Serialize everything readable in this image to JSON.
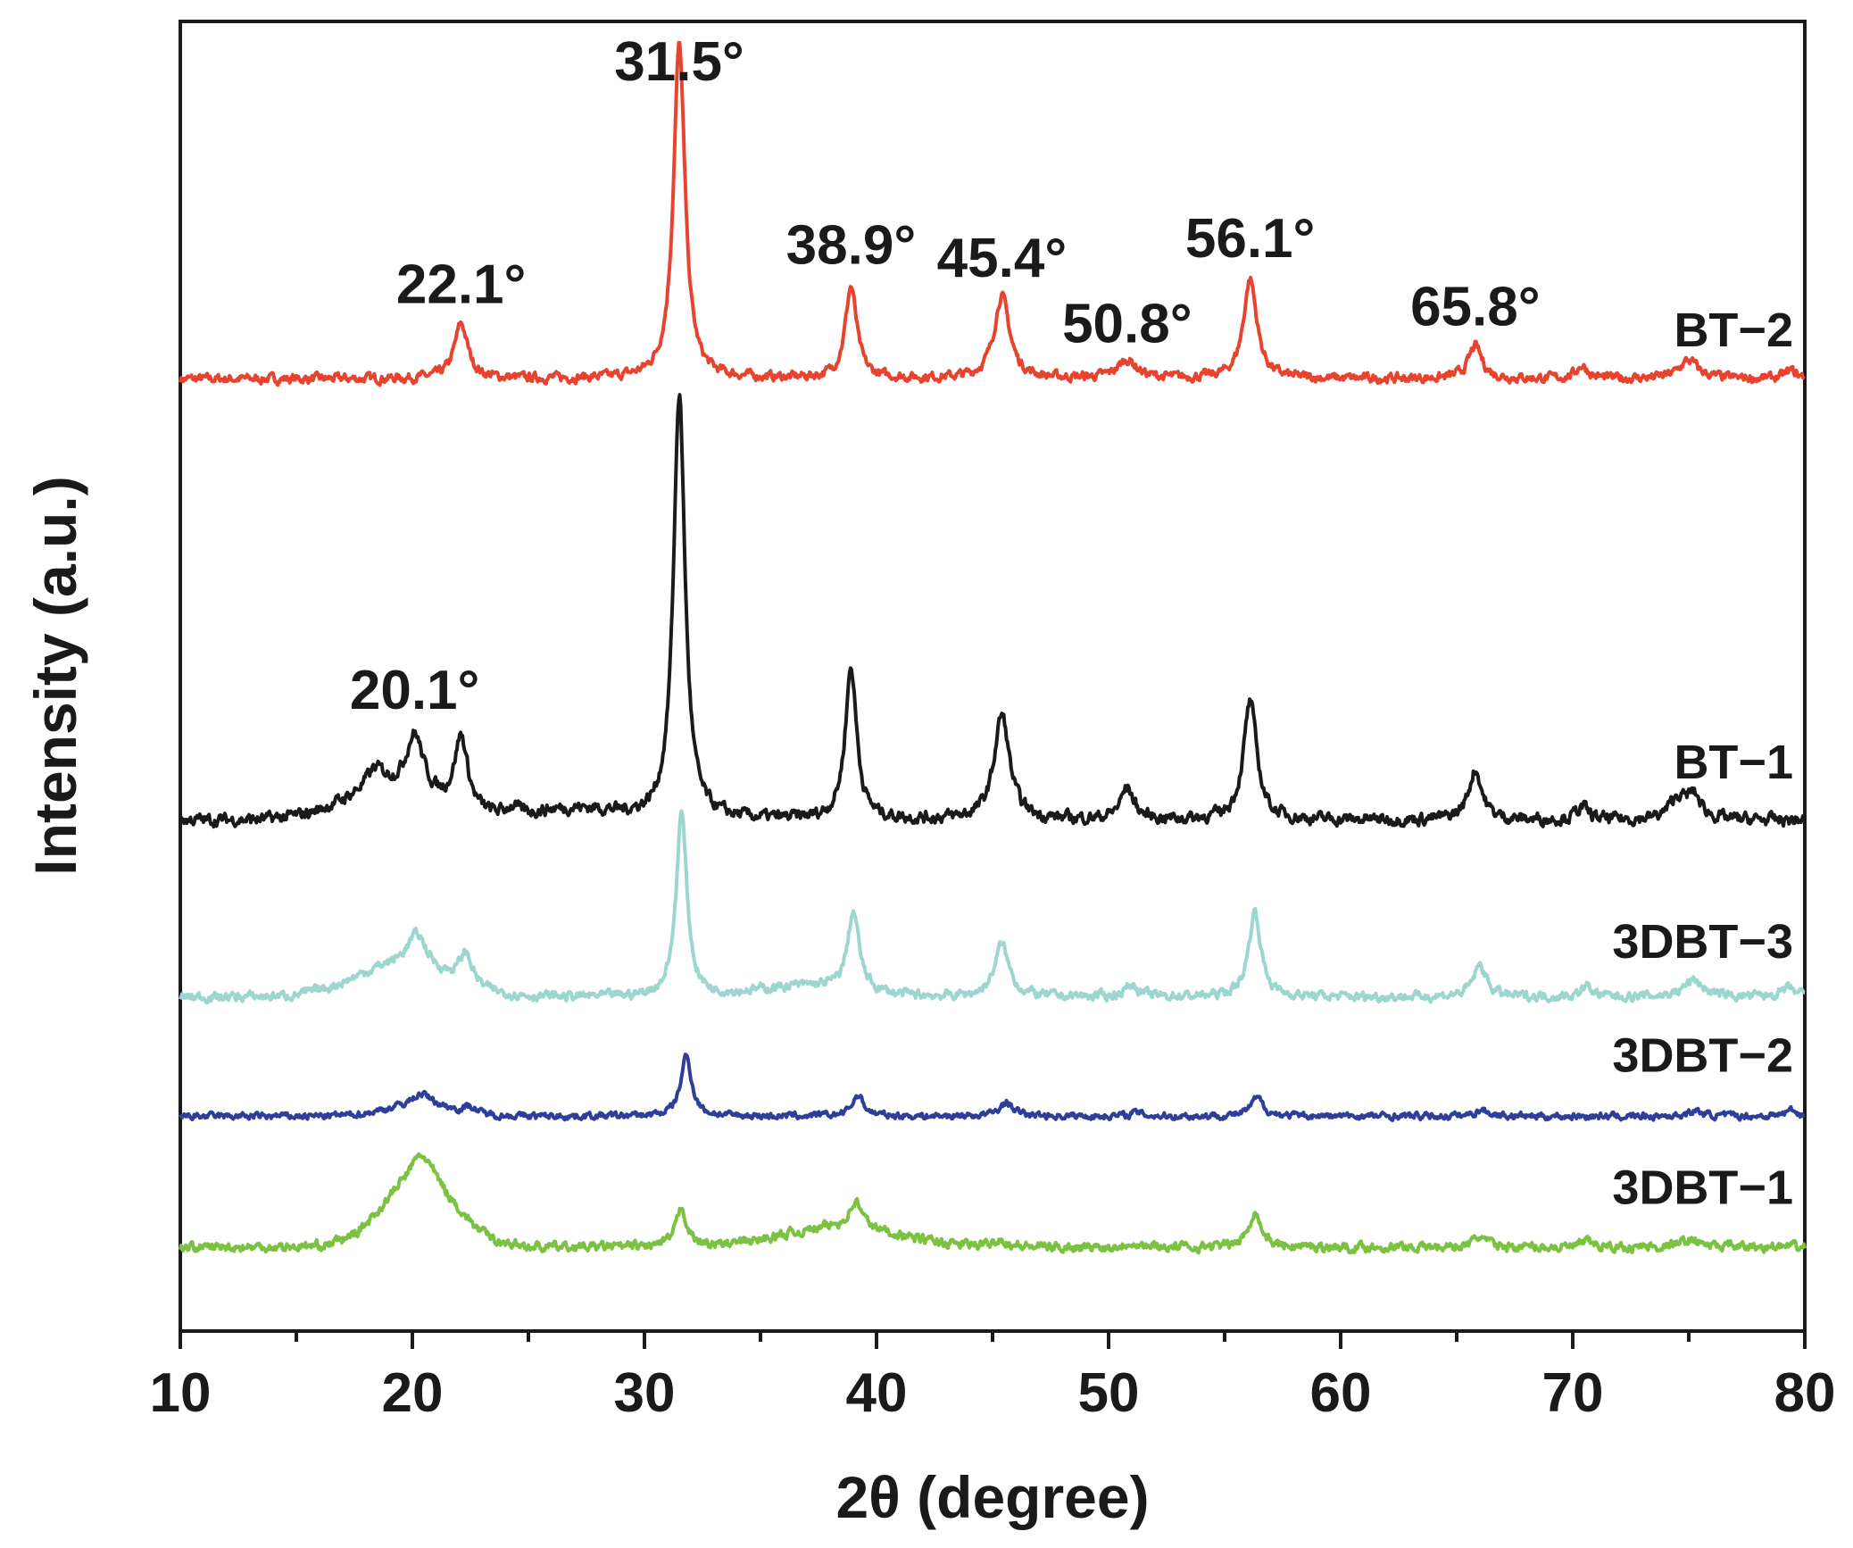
{
  "chart_data": {
    "type": "line",
    "title": "",
    "xlabel": "2θ (degree)",
    "ylabel": "Intensity (a.u.)",
    "xlim": [
      10,
      80
    ],
    "xticks": [
      10,
      20,
      30,
      40,
      50,
      60,
      70,
      80
    ],
    "yticks_shown": false,
    "ylim": [
      0,
      100
    ],
    "series": [
      {
        "name": "BT−2",
        "color": "#e8432e",
        "baseline": 72.7,
        "noise": 0.35,
        "peaks": [
          {
            "pos": 22.1,
            "height": 4.2,
            "width": 0.35
          },
          {
            "pos": 31.5,
            "height": 25.5,
            "width": 0.3
          },
          {
            "pos": 38.9,
            "height": 7.0,
            "width": 0.3
          },
          {
            "pos": 45.4,
            "height": 6.3,
            "width": 0.4
          },
          {
            "pos": 50.8,
            "height": 1.4,
            "width": 0.5
          },
          {
            "pos": 56.1,
            "height": 7.6,
            "width": 0.35
          },
          {
            "pos": 65.8,
            "height": 2.5,
            "width": 0.35
          },
          {
            "pos": 70.4,
            "height": 1.0,
            "width": 0.3
          },
          {
            "pos": 75.0,
            "height": 1.4,
            "width": 0.5
          },
          {
            "pos": 79.4,
            "height": 0.6,
            "width": 0.3
          }
        ],
        "humps": []
      },
      {
        "name": "BT−1",
        "color": "#1a1a1a",
        "baseline": 39.0,
        "noise": 0.45,
        "peaks": [
          {
            "pos": 18.4,
            "height": 1.6,
            "width": 0.5
          },
          {
            "pos": 20.1,
            "height": 4.5,
            "width": 0.45
          },
          {
            "pos": 22.1,
            "height": 5.6,
            "width": 0.35
          },
          {
            "pos": 24.3,
            "height": 0.6,
            "width": 0.3
          },
          {
            "pos": 31.5,
            "height": 32.5,
            "width": 0.3
          },
          {
            "pos": 38.9,
            "height": 11.6,
            "width": 0.3
          },
          {
            "pos": 45.4,
            "height": 8.0,
            "width": 0.4
          },
          {
            "pos": 50.8,
            "height": 2.4,
            "width": 0.35
          },
          {
            "pos": 56.1,
            "height": 9.0,
            "width": 0.35
          },
          {
            "pos": 65.8,
            "height": 3.8,
            "width": 0.35
          },
          {
            "pos": 70.4,
            "height": 1.0,
            "width": 0.3
          },
          {
            "pos": 74.5,
            "height": 1.5,
            "width": 0.4
          },
          {
            "pos": 75.2,
            "height": 1.8,
            "width": 0.4
          }
        ],
        "humps": [
          {
            "pos": 19.0,
            "height": 2.2,
            "width": 2.8
          },
          {
            "pos": 27.0,
            "height": 0.8,
            "width": 2.5
          }
        ]
      },
      {
        "name": "3DBT−3",
        "color": "#9dd6cf",
        "baseline": 25.5,
        "noise": 0.35,
        "peaks": [
          {
            "pos": 20.2,
            "height": 2.5,
            "width": 0.5
          },
          {
            "pos": 22.3,
            "height": 2.4,
            "width": 0.35
          },
          {
            "pos": 31.6,
            "height": 14.0,
            "width": 0.28
          },
          {
            "pos": 39.0,
            "height": 6.0,
            "width": 0.3
          },
          {
            "pos": 45.4,
            "height": 4.0,
            "width": 0.38
          },
          {
            "pos": 51.0,
            "height": 0.9,
            "width": 0.35
          },
          {
            "pos": 56.3,
            "height": 6.5,
            "width": 0.32
          },
          {
            "pos": 66.0,
            "height": 2.4,
            "width": 0.35
          },
          {
            "pos": 70.6,
            "height": 0.8,
            "width": 0.3
          },
          {
            "pos": 75.2,
            "height": 1.3,
            "width": 0.5
          },
          {
            "pos": 79.3,
            "height": 0.6,
            "width": 0.4
          }
        ],
        "humps": [
          {
            "pos": 19.5,
            "height": 2.4,
            "width": 2.8
          },
          {
            "pos": 37.0,
            "height": 0.8,
            "width": 3.0
          }
        ]
      },
      {
        "name": "3DBT−2",
        "color": "#2e3f9a",
        "baseline": 16.4,
        "noise": 0.25,
        "peaks": [
          {
            "pos": 20.4,
            "height": 0.9,
            "width": 0.5
          },
          {
            "pos": 22.5,
            "height": 0.5,
            "width": 0.3
          },
          {
            "pos": 31.8,
            "height": 4.6,
            "width": 0.28
          },
          {
            "pos": 39.2,
            "height": 1.6,
            "width": 0.3
          },
          {
            "pos": 45.6,
            "height": 1.0,
            "width": 0.38
          },
          {
            "pos": 51.2,
            "height": 0.3,
            "width": 0.3
          },
          {
            "pos": 56.4,
            "height": 1.4,
            "width": 0.32
          },
          {
            "pos": 66.1,
            "height": 0.5,
            "width": 0.35
          },
          {
            "pos": 75.3,
            "height": 0.4,
            "width": 0.4
          },
          {
            "pos": 79.4,
            "height": 0.5,
            "width": 0.3
          }
        ],
        "humps": [
          {
            "pos": 20.3,
            "height": 0.8,
            "width": 2.0
          }
        ]
      },
      {
        "name": "3DBT−1",
        "color": "#7bc142",
        "baseline": 6.4,
        "noise": 0.35,
        "peaks": [
          {
            "pos": 20.4,
            "height": 2.0,
            "width": 0.6
          },
          {
            "pos": 31.6,
            "height": 3.0,
            "width": 0.28
          },
          {
            "pos": 39.1,
            "height": 2.0,
            "width": 0.35
          },
          {
            "pos": 45.3,
            "height": 0.6,
            "width": 0.35
          },
          {
            "pos": 51.0,
            "height": 0.4,
            "width": 0.3
          },
          {
            "pos": 56.3,
            "height": 2.7,
            "width": 0.32
          },
          {
            "pos": 66.0,
            "height": 0.8,
            "width": 0.35
          },
          {
            "pos": 70.6,
            "height": 0.4,
            "width": 0.3
          },
          {
            "pos": 75.1,
            "height": 0.6,
            "width": 0.5
          }
        ],
        "humps": [
          {
            "pos": 20.3,
            "height": 5.0,
            "width": 2.2
          },
          {
            "pos": 38.5,
            "height": 1.5,
            "width": 3.5
          }
        ]
      }
    ],
    "annotations": [
      {
        "text": "31.5°",
        "x": 31.5,
        "y": 95.5
      },
      {
        "text": "22.1°",
        "x": 22.1,
        "y": 78.5
      },
      {
        "text": "38.9°",
        "x": 38.9,
        "y": 81.5
      },
      {
        "text": "45.4°",
        "x": 45.4,
        "y": 80.5
      },
      {
        "text": "50.8°",
        "x": 50.8,
        "y": 75.5
      },
      {
        "text": "56.1°",
        "x": 56.1,
        "y": 82.0
      },
      {
        "text": "65.8°",
        "x": 65.8,
        "y": 76.8
      },
      {
        "text": "20.1°",
        "x": 20.1,
        "y": 47.5
      }
    ],
    "series_labels": [
      {
        "text": "BT−2",
        "x": 79.5,
        "y": 75.2
      },
      {
        "text": "BT−1",
        "x": 79.5,
        "y": 42.2
      },
      {
        "text": "3DBT−3",
        "x": 79.5,
        "y": 28.5
      },
      {
        "text": "3DBT−2",
        "x": 79.5,
        "y": 19.8
      },
      {
        "text": "3DBT−1",
        "x": 79.5,
        "y": 9.7
      }
    ]
  }
}
